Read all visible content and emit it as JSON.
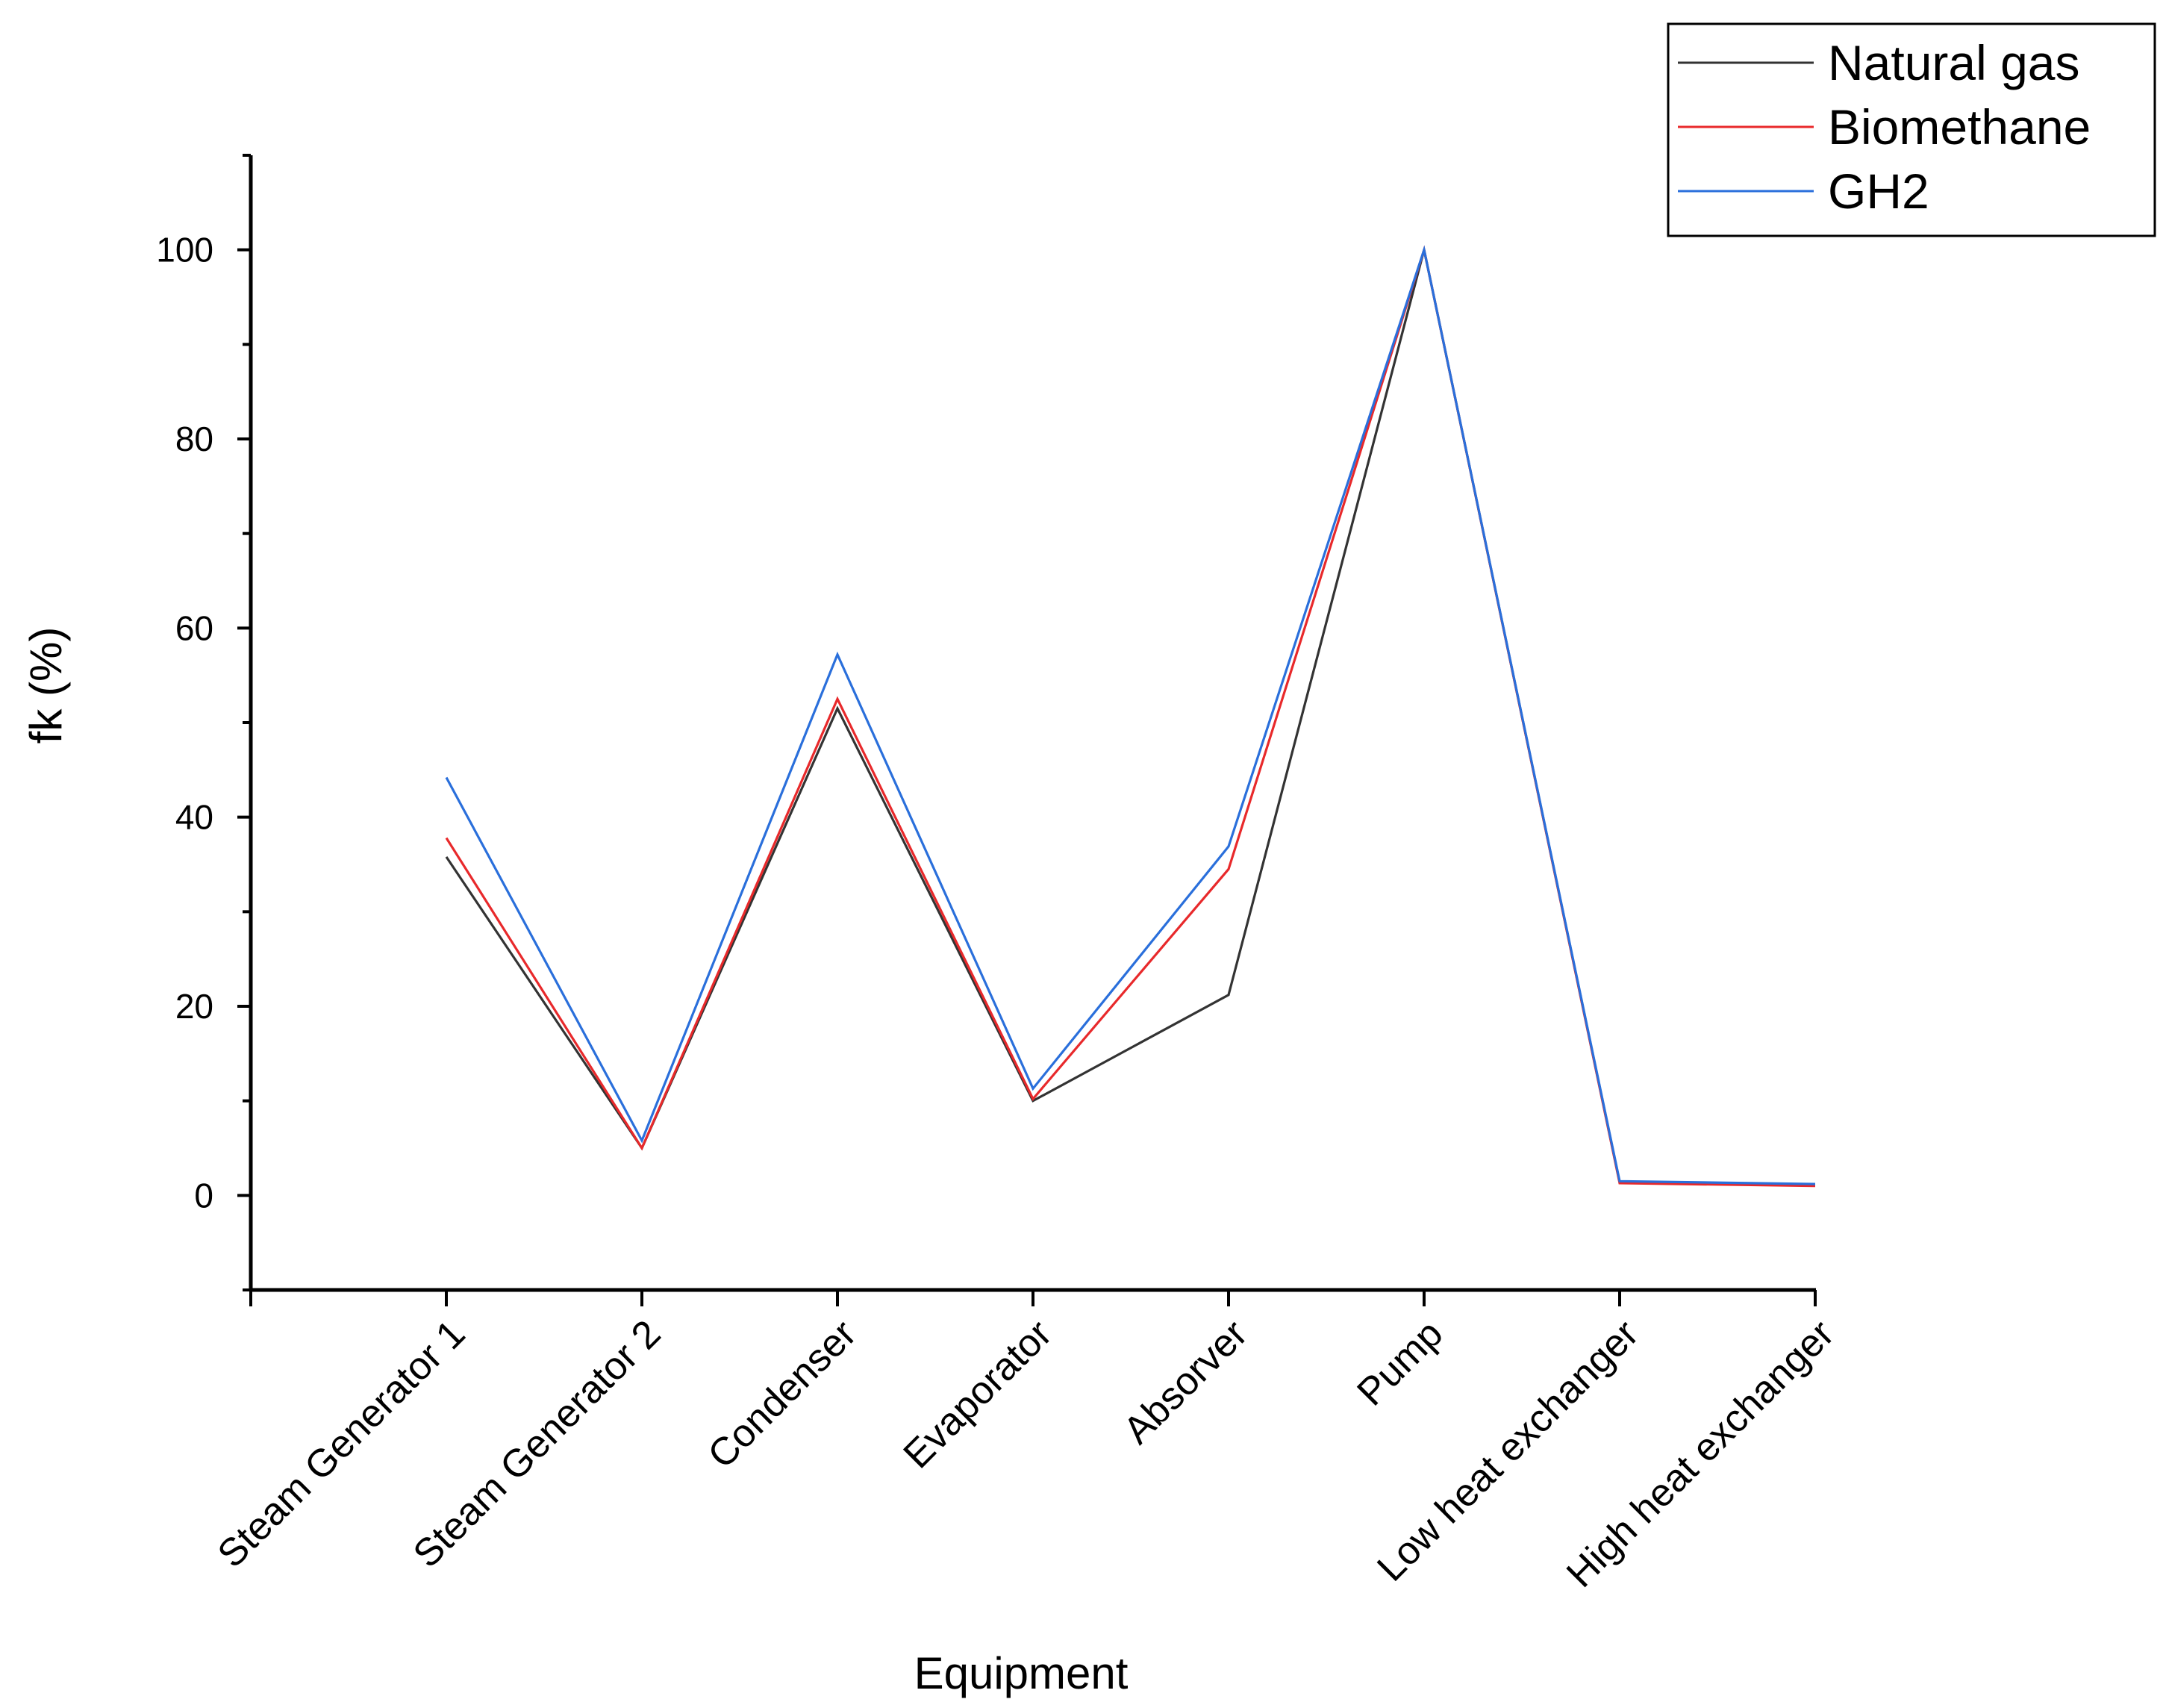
{
  "chart_data": {
    "type": "line",
    "title": "",
    "xlabel": "Equipment",
    "ylabel": "fk (%)",
    "categories": [
      "Steam Generator 1",
      "Steam Generator 2",
      "Condenser",
      "Evaporator",
      "Absorver",
      "Pump",
      "Low heat exchanger",
      "High heat exchanger"
    ],
    "ylim": [
      -10,
      110
    ],
    "yticks": [
      0,
      20,
      40,
      60,
      80,
      100
    ],
    "grid": false,
    "legend_position": "top-right",
    "series": [
      {
        "name": "Natural gas",
        "color": "#333333",
        "values": [
          35.8,
          5.0,
          51.5,
          10.0,
          21.2,
          100.0,
          1.4,
          1.1
        ]
      },
      {
        "name": "Biomethane",
        "color": "#e8292b",
        "values": [
          37.8,
          5.0,
          52.5,
          10.2,
          34.5,
          100.0,
          1.3,
          1.0
        ]
      },
      {
        "name": "GH2",
        "color": "#2a6fdb",
        "values": [
          44.2,
          5.8,
          57.2,
          11.3,
          36.9,
          100.0,
          1.5,
          1.2
        ]
      }
    ]
  }
}
